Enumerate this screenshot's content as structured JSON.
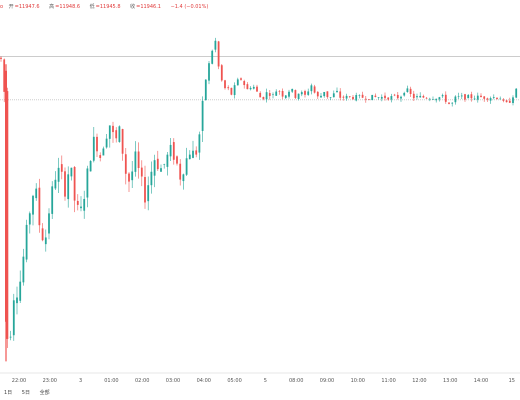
{
  "header": {
    "symbol_cut": "o",
    "ohlc": [
      {
        "label": "开",
        "value": "=11947.6"
      },
      {
        "label": "高",
        "value": "=11948.6"
      },
      {
        "label": "低",
        "value": "=11945.8"
      },
      {
        "label": "收",
        "value": "=11946.1"
      },
      {
        "label": "",
        "value": "−1.4 (−0.01%)"
      }
    ]
  },
  "periods": [
    "1日",
    "5日",
    "全部"
  ],
  "colors": {
    "up": "#26a69a",
    "down": "#ef5350",
    "grid": "#e6e6e6"
  },
  "chart_data": {
    "type": "candlestick",
    "x_ticks": [
      "22:00",
      "23:00",
      "3",
      "01:00",
      "02:00",
      "03:00",
      "04:00",
      "05:00",
      "5",
      "08:00",
      "09:00",
      "10:00",
      "11:00",
      "12:00",
      "13:00",
      "14:00",
      "15"
    ],
    "ylim": [
      11905,
      11958
    ],
    "reference_lines": [
      11952.2,
      11945.6
    ],
    "grid": false,
    "path": [
      [
        0,
        11952
      ],
      [
        3,
        11951
      ],
      [
        5,
        11944
      ],
      [
        7,
        11910
      ],
      [
        9,
        11908
      ],
      [
        12,
        11913
      ],
      [
        15,
        11918
      ],
      [
        18,
        11916
      ],
      [
        22,
        11920
      ],
      [
        26,
        11925
      ],
      [
        30,
        11929
      ],
      [
        35,
        11933
      ],
      [
        40,
        11926
      ],
      [
        45,
        11924
      ],
      [
        50,
        11930
      ],
      [
        55,
        11934
      ],
      [
        60,
        11935
      ],
      [
        65,
        11932
      ],
      [
        70,
        11936
      ],
      [
        75,
        11930
      ],
      [
        80,
        11928
      ],
      [
        85,
        11932
      ],
      [
        90,
        11937
      ],
      [
        95,
        11940
      ],
      [
        100,
        11937
      ],
      [
        105,
        11940
      ],
      [
        110,
        11942
      ],
      [
        115,
        11939
      ],
      [
        120,
        11941
      ],
      [
        125,
        11935
      ],
      [
        130,
        11933
      ],
      [
        135,
        11937
      ],
      [
        140,
        11934
      ],
      [
        145,
        11931
      ],
      [
        150,
        11934
      ],
      [
        155,
        11937
      ],
      [
        160,
        11935
      ],
      [
        165,
        11936
      ],
      [
        170,
        11938
      ],
      [
        175,
        11937
      ],
      [
        180,
        11934
      ],
      [
        185,
        11936
      ],
      [
        190,
        11938
      ],
      [
        195,
        11937
      ],
      [
        198,
        11939
      ],
      [
        200,
        11941
      ],
      [
        203,
        11945
      ],
      [
        206,
        11949
      ],
      [
        209,
        11951
      ],
      [
        212,
        11953
      ],
      [
        215,
        11955
      ],
      [
        218,
        11951
      ],
      [
        221,
        11949
      ],
      [
        224,
        11947
      ],
      [
        227,
        11948
      ],
      [
        230,
        11946
      ],
      [
        233,
        11947
      ],
      [
        236,
        11948
      ],
      [
        240,
        11949
      ],
      [
        244,
        11948
      ],
      [
        248,
        11947
      ],
      [
        252,
        11948
      ],
      [
        256,
        11947
      ],
      [
        260,
        11946
      ],
      [
        264,
        11946
      ],
      [
        268,
        11947
      ],
      [
        272,
        11946
      ],
      [
        276,
        11947
      ],
      [
        280,
        11947
      ],
      [
        284,
        11946
      ],
      [
        288,
        11947
      ],
      [
        292,
        11947
      ],
      [
        296,
        11946
      ],
      [
        300,
        11947
      ],
      [
        304,
        11946
      ],
      [
        308,
        11947
      ],
      [
        312,
        11948
      ],
      [
        316,
        11946
      ],
      [
        320,
        11946
      ],
      [
        324,
        11947
      ],
      [
        328,
        11946
      ],
      [
        332,
        11946
      ],
      [
        336,
        11947
      ],
      [
        340,
        11946
      ],
      [
        344,
        11946
      ],
      [
        348,
        11946
      ],
      [
        352,
        11946
      ],
      [
        356,
        11946
      ],
      [
        360,
        11946
      ],
      [
        364,
        11946
      ],
      [
        368,
        11946
      ],
      [
        372,
        11946
      ],
      [
        376,
        11946
      ],
      [
        380,
        11946
      ],
      [
        384,
        11946
      ],
      [
        388,
        11946
      ],
      [
        392,
        11946
      ],
      [
        396,
        11946
      ],
      [
        400,
        11946
      ],
      [
        404,
        11947
      ],
      [
        408,
        11947
      ],
      [
        412,
        11946
      ],
      [
        416,
        11946
      ],
      [
        420,
        11946
      ],
      [
        424,
        11946
      ],
      [
        428,
        11946
      ],
      [
        432,
        11946
      ],
      [
        436,
        11946
      ],
      [
        440,
        11946
      ],
      [
        444,
        11946
      ],
      [
        448,
        11945
      ],
      [
        452,
        11945
      ],
      [
        456,
        11946
      ],
      [
        460,
        11946
      ],
      [
        464,
        11946
      ],
      [
        468,
        11946
      ],
      [
        472,
        11946
      ],
      [
        476,
        11946
      ],
      [
        480,
        11946
      ],
      [
        484,
        11946
      ],
      [
        488,
        11946
      ],
      [
        492,
        11946
      ],
      [
        496,
        11946
      ],
      [
        500,
        11946
      ],
      [
        504,
        11945
      ],
      [
        508,
        11945
      ],
      [
        512,
        11946
      ],
      [
        516,
        11947
      ],
      [
        520,
        11947
      ]
    ]
  }
}
